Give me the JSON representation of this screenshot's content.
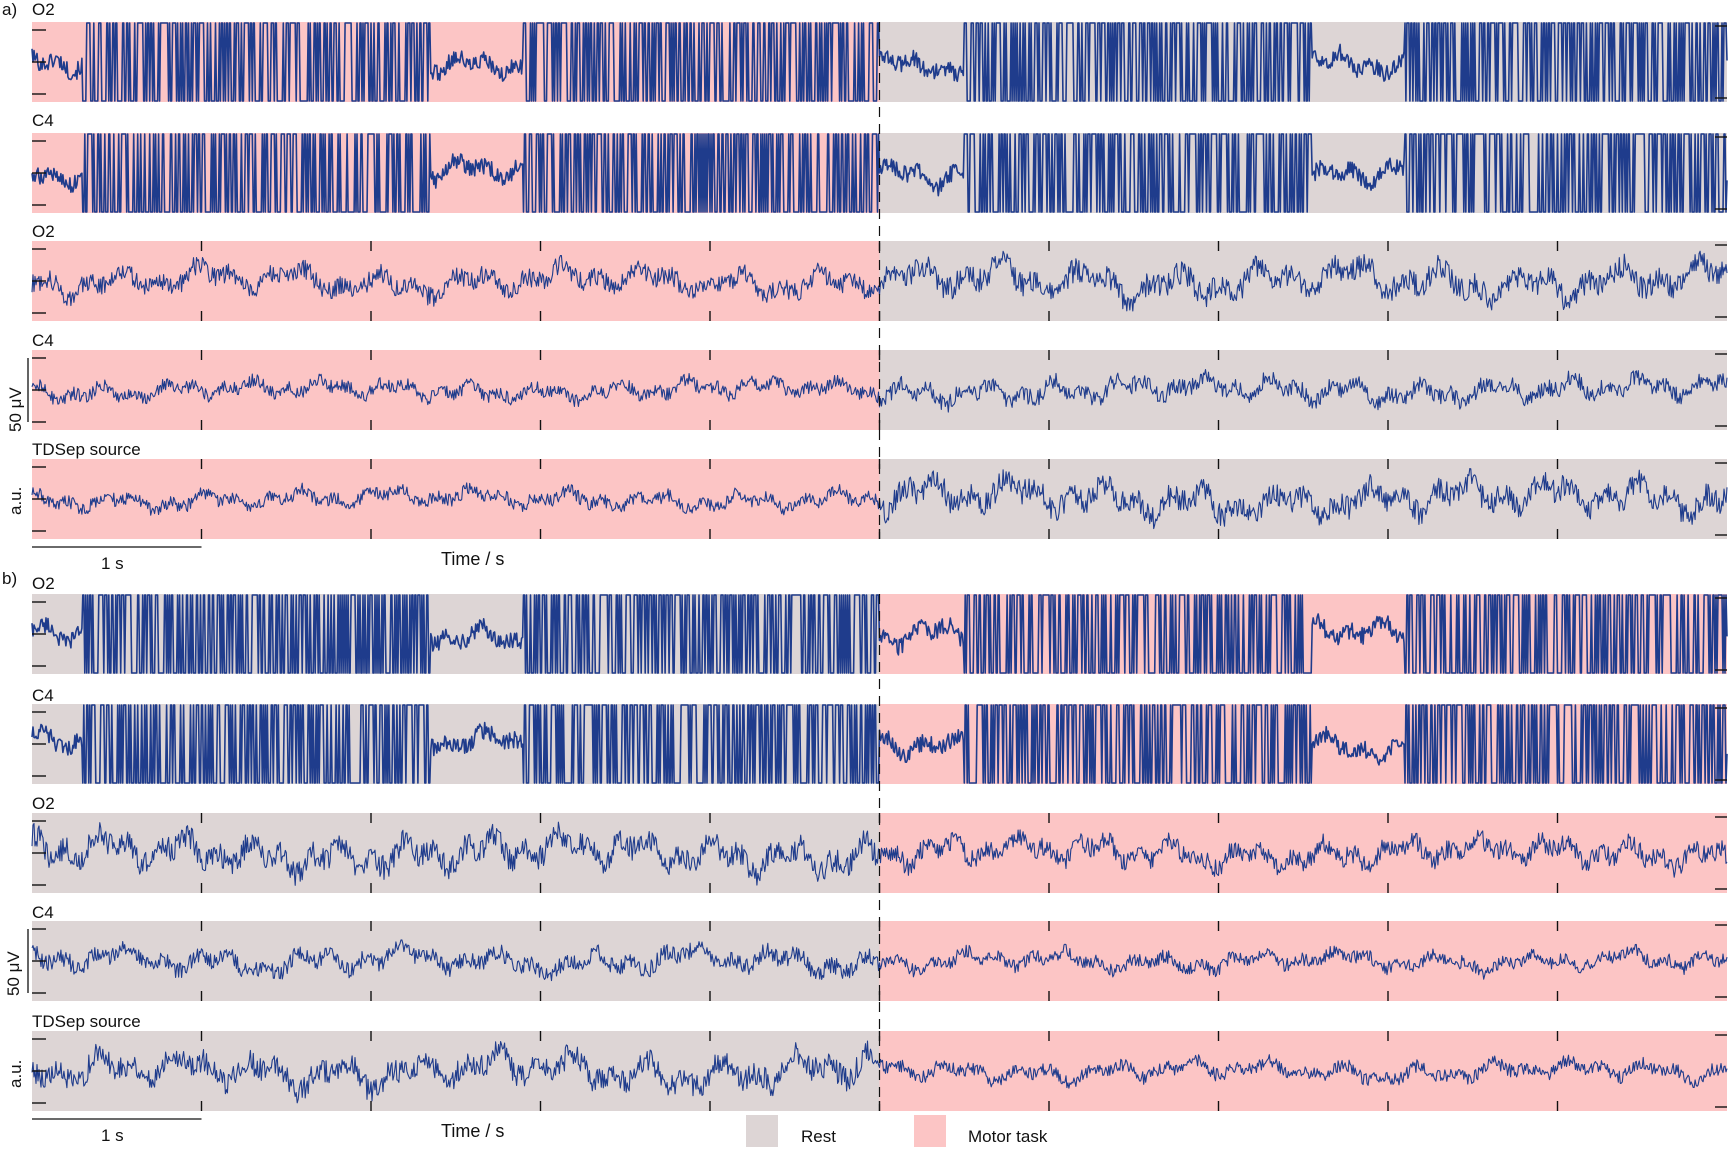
{
  "figure": {
    "panels": [
      {
        "letter": "a)",
        "channels": [
          "O2",
          "C4",
          "O2",
          "C4",
          "TDSep source"
        ],
        "scale_bar_labels": [
          "50 μV",
          "a.u."
        ],
        "time_scale_label": "1 s",
        "xlabel": "Time / s"
      },
      {
        "letter": "b)",
        "channels": [
          "O2",
          "C4",
          "O2",
          "C4",
          "TDSep source"
        ],
        "scale_bar_labels": [
          "50 μV",
          "a.u."
        ],
        "time_scale_label": "1 s",
        "xlabel": "Time / s"
      }
    ],
    "legend": [
      {
        "label": "Rest",
        "color": "#ddd5d5"
      },
      {
        "label": "Motor task",
        "color": "#fcc5c5"
      }
    ]
  },
  "chart_data": [
    {
      "type": "line",
      "panel": "a)",
      "xlabel": "Time / s",
      "time_scale": "1 s",
      "x_range_s": [
        0,
        10
      ],
      "condition_blocks": [
        {
          "condition": "Motor task",
          "start_s": 0,
          "end_s": 5
        },
        {
          "condition": "Rest",
          "start_s": 5,
          "end_s": 10
        }
      ],
      "series": [
        {
          "name": "O2",
          "kind": "raw with artifacts",
          "artifact_spans_s": [
            [
              0.3,
              2.35
            ],
            [
              2.9,
              5.0
            ],
            [
              5.5,
              7.55
            ],
            [
              8.1,
              10.0
            ]
          ]
        },
        {
          "name": "C4",
          "kind": "raw with artifacts",
          "artifact_spans_s": [
            [
              0.3,
              2.35
            ],
            [
              2.9,
              5.0
            ],
            [
              5.5,
              7.55
            ],
            [
              8.1,
              10.0
            ]
          ]
        },
        {
          "name": "O2",
          "kind": "cleaned",
          "scale": "50 μV"
        },
        {
          "name": "C4",
          "kind": "cleaned",
          "scale": "50 μV"
        },
        {
          "name": "TDSep source",
          "kind": "source",
          "scale": "a.u."
        }
      ]
    },
    {
      "type": "line",
      "panel": "b)",
      "xlabel": "Time / s",
      "time_scale": "1 s",
      "x_range_s": [
        0,
        10
      ],
      "condition_blocks": [
        {
          "condition": "Rest",
          "start_s": 0,
          "end_s": 5
        },
        {
          "condition": "Motor task",
          "start_s": 5,
          "end_s": 10
        }
      ],
      "series": [
        {
          "name": "O2",
          "kind": "raw with artifacts",
          "artifact_spans_s": [
            [
              0.3,
              2.35
            ],
            [
              2.9,
              5.0
            ],
            [
              5.5,
              7.55
            ],
            [
              8.1,
              10.0
            ]
          ]
        },
        {
          "name": "C4",
          "kind": "raw with artifacts",
          "artifact_spans_s": [
            [
              0.3,
              2.35
            ],
            [
              2.9,
              5.0
            ],
            [
              5.5,
              7.55
            ],
            [
              8.1,
              10.0
            ]
          ]
        },
        {
          "name": "O2",
          "kind": "cleaned",
          "scale": "50 μV"
        },
        {
          "name": "C4",
          "kind": "cleaned",
          "scale": "50 μV"
        },
        {
          "name": "TDSep source",
          "kind": "source",
          "scale": "a.u."
        }
      ]
    }
  ]
}
